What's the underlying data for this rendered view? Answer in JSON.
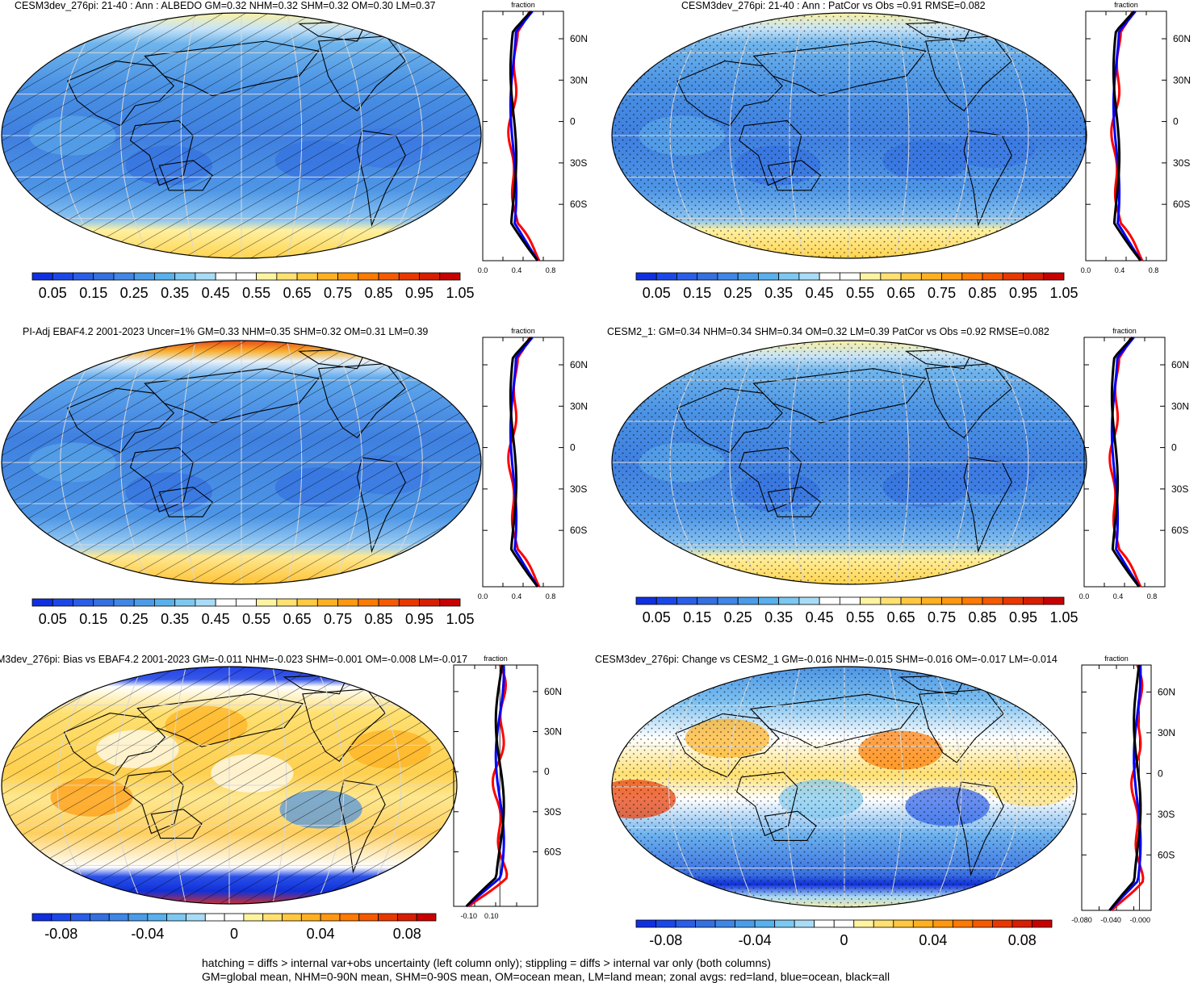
{
  "panels": [
    {
      "title": "CESM3dev_276pi: 21-40 : Ann : ALBEDO GM=0.32 NHM=0.32 SHM=0.32 OM=0.30 LM=0.37",
      "overlay": "hatching",
      "colorbar": {
        "levels": [
          "0.05",
          "0.15",
          "0.25",
          "0.35",
          "0.45",
          "0.55",
          "0.65",
          "0.75",
          "0.85",
          "0.95",
          "1.05"
        ],
        "kind": "abs"
      },
      "zonal": {
        "xlabel": "fraction",
        "xticks": [
          "0.0",
          "0.4",
          "0.8"
        ],
        "yticks": [
          "60N",
          "30N",
          "0",
          "30S",
          "60S"
        ]
      }
    },
    {
      "title": "CESM3dev_276pi: 21-40 : Ann : PatCor vs Obs =0.91 RMSE=0.082",
      "overlay": "stipple",
      "colorbar": {
        "levels": [
          "0.05",
          "0.15",
          "0.25",
          "0.35",
          "0.45",
          "0.55",
          "0.65",
          "0.75",
          "0.85",
          "0.95",
          "1.05"
        ],
        "kind": "abs"
      },
      "zonal": {
        "xlabel": "fraction",
        "xticks": [
          "0.0",
          "0.4",
          "0.8"
        ],
        "yticks": [
          "60N",
          "30N",
          "0",
          "30S",
          "60S"
        ]
      }
    },
    {
      "title": "PI-Adj EBAF4.2 2001-2023 Uncer=1% GM=0.33 NHM=0.35 SHM=0.32 OM=0.31 LM=0.39",
      "overlay": "hatching",
      "colorbar": {
        "levels": [
          "0.05",
          "0.15",
          "0.25",
          "0.35",
          "0.45",
          "0.55",
          "0.65",
          "0.75",
          "0.85",
          "0.95",
          "1.05"
        ],
        "kind": "abs"
      },
      "zonal": {
        "xlabel": "fraction",
        "xticks": [
          "0.0",
          "0.4",
          "0.8"
        ],
        "yticks": [
          "60N",
          "30N",
          "0",
          "30S",
          "60S"
        ]
      }
    },
    {
      "title": "CESM2_1: GM=0.34 NHM=0.34 SHM=0.34 OM=0.32 LM=0.39 PatCor vs Obs =0.92 RMSE=0.082",
      "overlay": "stipple",
      "colorbar": {
        "levels": [
          "0.05",
          "0.15",
          "0.25",
          "0.35",
          "0.45",
          "0.55",
          "0.65",
          "0.75",
          "0.85",
          "0.95",
          "1.05"
        ],
        "kind": "abs"
      },
      "zonal": {
        "xlabel": "fraction",
        "xticks": [
          "0.0",
          "0.4",
          "0.8"
        ],
        "yticks": [
          "60N",
          "30N",
          "0",
          "30S",
          "60S"
        ]
      }
    },
    {
      "title": "M3dev_276pi: Bias vs EBAF4.2 2001-2023 GM=-0.011 NHM=-0.023 SHM=-0.001 OM=-0.008 LM=-0.017",
      "overlay": "hatching",
      "colorbar": {
        "levels": [
          "-0.08",
          "-0.04",
          "0",
          "0.04",
          "0.08"
        ],
        "kind": "diff"
      },
      "zonal": {
        "xlabel": "fraction",
        "xticks": [
          "-0.10",
          "0.10"
        ],
        "yticks": [
          "60N",
          "30N",
          "0",
          "30S",
          "60S"
        ]
      }
    },
    {
      "title": "CESM3dev_276pi: Change vs CESM2_1 GM=-0.016 NHM=-0.015 SHM=-0.016 OM=-0.017 LM=-0.014",
      "overlay": "stipple",
      "colorbar": {
        "levels": [
          "-0.08",
          "-0.04",
          "0",
          "0.04",
          "0.08"
        ],
        "kind": "diff"
      },
      "zonal": {
        "xlabel": "fraction",
        "xticks": [
          "-0.080",
          "-0.040",
          "-0.000"
        ],
        "yticks": [
          "60N",
          "30N",
          "0",
          "30S",
          "60S"
        ]
      }
    }
  ],
  "palette": {
    "abs": [
      "#1030e0",
      "#1a48e8",
      "#2a5ee8",
      "#3470e0",
      "#3f86e6",
      "#4a9ce8",
      "#58b0ec",
      "#7cc8f0",
      "#a8dcf6",
      "#ffffff",
      "#ffffff",
      "#fff3a0",
      "#ffe070",
      "#ffc840",
      "#ffb020",
      "#ff9810",
      "#ff7a00",
      "#f55a00",
      "#e83800",
      "#d81e00",
      "#c80000"
    ],
    "diff": [
      "#1030e0",
      "#1a48e8",
      "#2a5ee8",
      "#3470e0",
      "#3f86e6",
      "#4a9ce8",
      "#58b0ec",
      "#7cc8f0",
      "#a8dcf6",
      "#ffffff",
      "#ffffff",
      "#fff3a0",
      "#ffe070",
      "#ffc840",
      "#ffb020",
      "#ff9810",
      "#ff7a00",
      "#f55a00",
      "#e83800",
      "#d81e00",
      "#c80000"
    ]
  },
  "legend": {
    "land": "#ff0000",
    "ocean": "#0000ff",
    "all": "#000000"
  },
  "caption": {
    "line1": "hatching = diffs > internal var+obs uncertainty (left column only); stippling = diffs > internal var only (both columns)",
    "line2": "GM=global mean, NHM=0-90N mean, SHM=0-90S mean, OM=ocean mean, LM=land mean; zonal avgs: red=land, blue=ocean, black=all"
  }
}
